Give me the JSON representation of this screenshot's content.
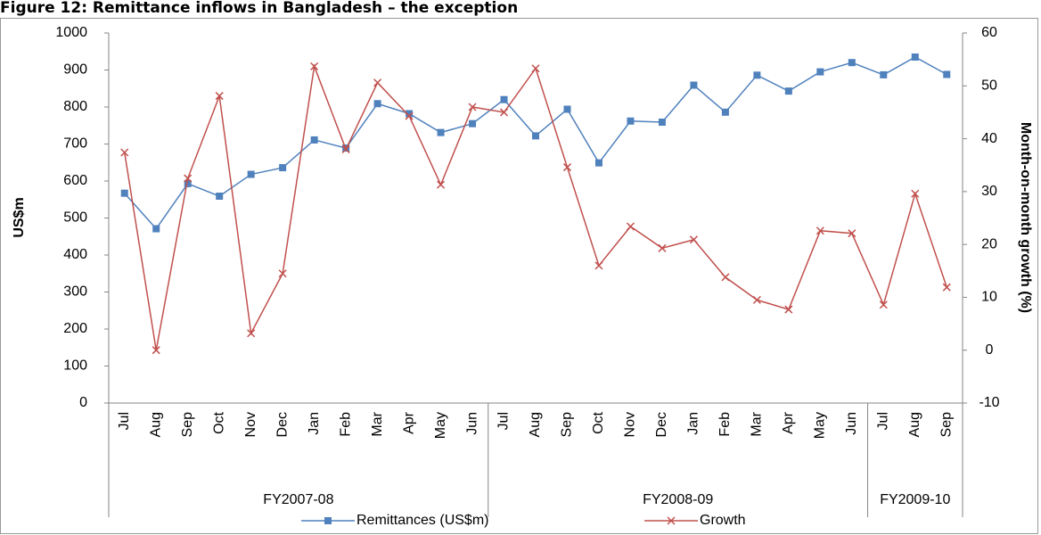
{
  "chart_data": {
    "type": "line",
    "title": "Figure 12: Remittance inflows in Bangladesh – the exception",
    "y_label": "US$m",
    "y2_label": "Month-on-month growth (%)",
    "category_groups": [
      {
        "label": "FY2007-08",
        "categories": [
          "Jul",
          "Aug",
          "Sep",
          "Oct",
          "Nov",
          "Dec",
          "Jan",
          "Feb",
          "Mar",
          "Apr",
          "May",
          "Jun"
        ]
      },
      {
        "label": "FY2008-09",
        "categories": [
          "Jul",
          "Aug",
          "Sep",
          "Oct",
          "Nov",
          "Dec",
          "Jan",
          "Feb",
          "Mar",
          "Apr",
          "May",
          "Jun"
        ]
      },
      {
        "label": "FY2009-10",
        "categories": [
          "Jul",
          "Aug",
          "Sep"
        ]
      }
    ],
    "series": [
      {
        "name": "Remittances (US$m)",
        "color": "#4f81bd",
        "marker": "square",
        "values": [
          567,
          471,
          593,
          559,
          618,
          636,
          711,
          689,
          809,
          782,
          731,
          755,
          820,
          722,
          794,
          649,
          762,
          759,
          859,
          786,
          886,
          843,
          895,
          920,
          887,
          935,
          888
        ]
      },
      {
        "name": "Growth",
        "color": "#c0504d",
        "marker": "x",
        "axis": "y2",
        "values": [
          37.4,
          0,
          32.5,
          48.1,
          3.2,
          14.5,
          53.7,
          38.0,
          50.6,
          44.3,
          31.3,
          46.0,
          45.0,
          53.3,
          34.6,
          16.0,
          23.4,
          19.3,
          20.9,
          13.8,
          9.5,
          7.7,
          22.6,
          22.1,
          8.6,
          29.6,
          11.9
        ]
      }
    ],
    "ylim": [
      0,
      1000
    ],
    "yticks": [
      0,
      100,
      200,
      300,
      400,
      500,
      600,
      700,
      800,
      900,
      1000
    ],
    "y2lim": [
      -10,
      60
    ],
    "y2ticks": [
      -10,
      0,
      10,
      20,
      30,
      40,
      50,
      60
    ],
    "legend": "bottom"
  }
}
